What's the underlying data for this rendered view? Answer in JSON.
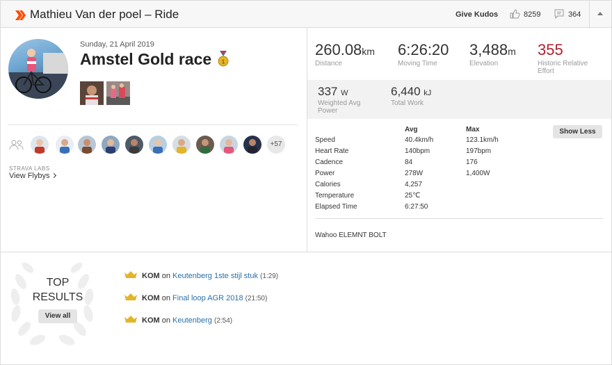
{
  "header": {
    "title": "Mathieu Van der poel – Ride",
    "give_kudos_label": "Give Kudos",
    "kudos_count": "8259",
    "comment_count": "364"
  },
  "activity": {
    "date": "Sunday, 21 April 2019",
    "title": "Amstel Gold race"
  },
  "group": {
    "more_count": "+57"
  },
  "flyby": {
    "labs_label": "STRAVA LABS",
    "link_label": "View Flybys"
  },
  "stats": {
    "distance": {
      "value": "260.08",
      "unit": "km",
      "label": "Distance"
    },
    "moving_time": {
      "value": "6:26:20",
      "label": "Moving Time"
    },
    "elevation": {
      "value": "3,488",
      "unit": "m",
      "label": "Elevation"
    },
    "relative_effort": {
      "value": "355",
      "label_1": "Historic Relative",
      "label_2": "Effort"
    },
    "weighted_power": {
      "value": "337",
      "unit": "W",
      "label_1": "Weighted Avg",
      "label_2": "Power"
    },
    "total_work": {
      "value": "6,440",
      "unit": "kJ",
      "label": "Total Work"
    }
  },
  "details": {
    "avg_header": "Avg",
    "max_header": "Max",
    "show_less_label": "Show Less",
    "rows": [
      {
        "label": "Speed",
        "avg": "40.4km/h",
        "max": "123.1km/h"
      },
      {
        "label": "Heart Rate",
        "avg": "140bpm",
        "max": "197bpm"
      },
      {
        "label": "Cadence",
        "avg": "84",
        "max": "176"
      },
      {
        "label": "Power",
        "avg": "278W",
        "max": "1,400W"
      },
      {
        "label": "Calories",
        "avg": "4,257",
        "max": ""
      },
      {
        "label": "Temperature",
        "avg": "25℃",
        "max": ""
      },
      {
        "label": "Elapsed Time",
        "avg": "6:27:50",
        "max": ""
      }
    ],
    "device": "Wahoo ELEMNT BOLT"
  },
  "top_results": {
    "title_1": "TOP",
    "title_2": "RESULTS",
    "view_all_label": "View all",
    "items": [
      {
        "badge": "KOM",
        "on": "on",
        "segment": "Keutenberg 1ste stijl stuk",
        "time": "(1:29)"
      },
      {
        "badge": "KOM",
        "on": "on",
        "segment": "Final loop AGR 2018",
        "time": "(21:50)"
      },
      {
        "badge": "KOM",
        "on": "on",
        "segment": "Keutenberg",
        "time": "(2:54)"
      }
    ]
  },
  "colors": {
    "strava_orange": "#fc4c02",
    "relative_effort_red": "#b0202f",
    "link_blue": "#2a6fa6",
    "crown_gold": "#e4b429"
  }
}
